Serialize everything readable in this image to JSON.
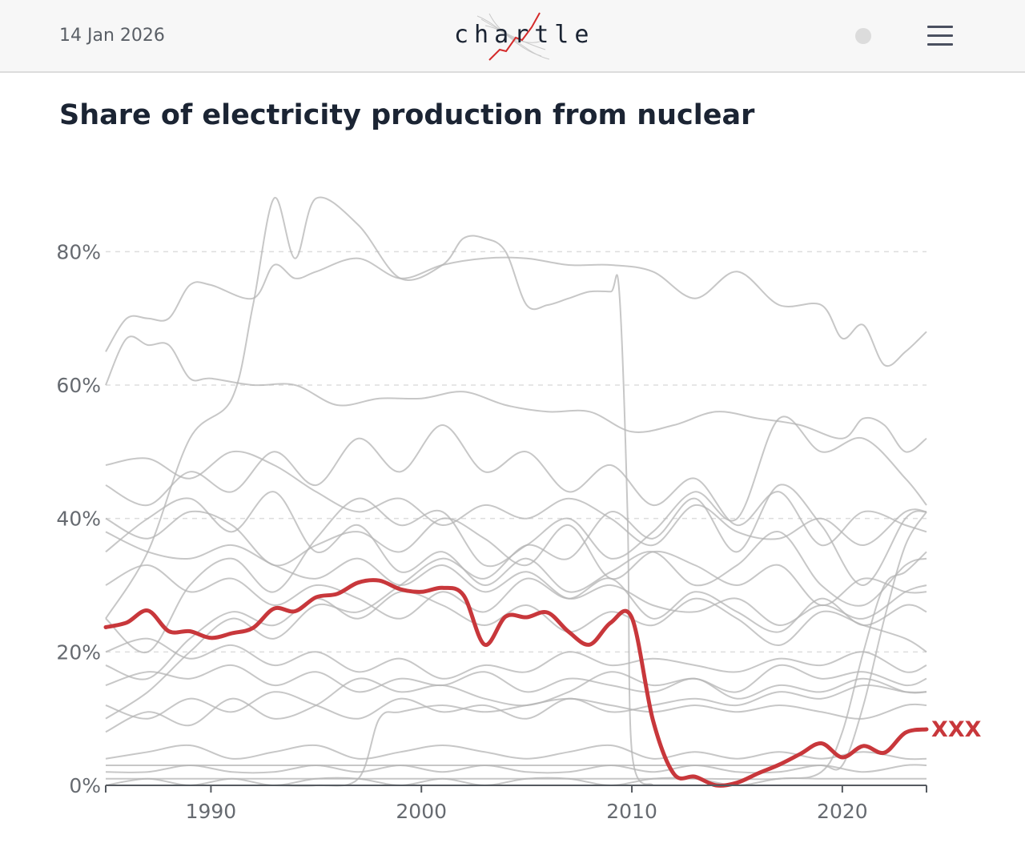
{
  "header": {
    "date": "14 Jan 2026",
    "logo_text": "chartle"
  },
  "title": "Share of electricity production from nuclear",
  "chart_data": {
    "type": "line",
    "title": "Share of electricity production from nuclear",
    "xlabel": "",
    "ylabel": "",
    "xlim": [
      1985,
      2024
    ],
    "ylim": [
      0,
      90
    ],
    "x_ticks": [
      {
        "value": 1990,
        "label": "1990"
      },
      {
        "value": 2000,
        "label": "2000"
      },
      {
        "value": 2010,
        "label": "2010"
      },
      {
        "value": 2020,
        "label": "2020"
      }
    ],
    "y_ticks": [
      {
        "value": 0,
        "label": "0%"
      },
      {
        "value": 20,
        "label": "20%"
      },
      {
        "value": 40,
        "label": "40%"
      },
      {
        "value": 60,
        "label": "60%"
      },
      {
        "value": 80,
        "label": "80%"
      }
    ],
    "highlight": {
      "name": "XXX",
      "color": "#c8373b",
      "x": [
        1985,
        1986,
        1987,
        1988,
        1989,
        1990,
        1991,
        1992,
        1993,
        1994,
        1995,
        1996,
        1997,
        1998,
        1999,
        2000,
        2001,
        2002,
        2003,
        2004,
        2005,
        2006,
        2007,
        2008,
        2009,
        2010,
        2011,
        2012,
        2013,
        2014,
        2015,
        2016,
        2017,
        2018,
        2019,
        2020,
        2021,
        2022,
        2023,
        2024
      ],
      "values": [
        23.7,
        24.4,
        26.2,
        23.1,
        23.1,
        22.1,
        22.8,
        23.6,
        26.5,
        26.1,
        28.2,
        28.7,
        30.4,
        30.7,
        29.4,
        29.0,
        29.6,
        28.5,
        21.1,
        25.3,
        25.2,
        25.9,
        23.0,
        21.1,
        24.4,
        25.1,
        9.8,
        1.7,
        1.3,
        0.0,
        0.4,
        1.8,
        3.1,
        4.7,
        6.3,
        4.2,
        5.9,
        4.9,
        7.9,
        8.4
      ]
    },
    "background_series": [
      {
        "name": "series-01",
        "x": [
          1985,
          1986,
          1987,
          1988,
          1989,
          1990,
          1992,
          1993,
          1994,
          1995,
          1997,
          1999,
          2001,
          2003,
          2005,
          2007,
          2009,
          2011,
          2013,
          2015,
          2017,
          2019,
          2020,
          2021,
          2022,
          2023,
          2024
        ],
        "values": [
          65,
          70,
          70,
          70,
          75,
          75,
          73,
          78,
          76,
          77,
          79,
          76,
          78,
          79,
          79,
          78,
          78,
          77,
          73,
          77,
          72,
          72,
          67,
          69,
          63,
          65,
          68
        ]
      },
      {
        "name": "series-02",
        "x": [
          1985,
          1986,
          1987,
          1988,
          1989,
          1990,
          1992,
          1994,
          1996,
          1998,
          2000,
          2002,
          2004,
          2006,
          2008,
          2010,
          2012,
          2014,
          2016,
          2018,
          2020,
          2021,
          2022,
          2023,
          2024
        ],
        "values": [
          60,
          67,
          66,
          66,
          61,
          61,
          60,
          60,
          57,
          58,
          58,
          59,
          57,
          56,
          56,
          53,
          54,
          56,
          55,
          54,
          52,
          55,
          54,
          50,
          52
        ]
      },
      {
        "name": "series-03",
        "x": [
          1985,
          1987,
          1989,
          1991,
          1992,
          1993,
          1994,
          1995,
          1997,
          1999,
          2001,
          2002,
          2003,
          2004,
          2005,
          2006,
          2007,
          2008,
          2009,
          2009.4,
          2009.8,
          2010,
          2011
        ],
        "values": [
          25,
          35,
          52,
          58,
          72,
          88,
          79,
          88,
          84,
          76,
          78,
          82,
          82,
          80,
          72,
          72,
          73,
          74,
          74,
          74,
          40,
          5,
          0
        ]
      },
      {
        "name": "series-04",
        "x": [
          1985,
          1987,
          1989,
          1991,
          1993,
          1995,
          1997,
          1999,
          2001,
          2003,
          2005,
          2007,
          2009,
          2011,
          2013,
          2015,
          2017,
          2019,
          2021,
          2023,
          2024
        ],
        "values": [
          48,
          49,
          46,
          50,
          48,
          44,
          41,
          43,
          39,
          42,
          40,
          43,
          40,
          36,
          42,
          38,
          37,
          40,
          36,
          41,
          41
        ]
      },
      {
        "name": "series-05",
        "x": [
          1985,
          1987,
          1989,
          1991,
          1993,
          1995,
          1997,
          1999,
          2001,
          2003,
          2005,
          2007,
          2009,
          2011,
          2013,
          2015,
          2017,
          2019,
          2021,
          2023,
          2024
        ],
        "values": [
          45,
          42,
          47,
          44,
          50,
          45,
          52,
          47,
          54,
          47,
          50,
          44,
          48,
          42,
          46,
          39,
          44,
          36,
          41,
          39,
          38
        ]
      },
      {
        "name": "series-06",
        "x": [
          1985,
          1987,
          1989,
          1991,
          1993,
          1995,
          1997,
          1999,
          2001,
          2003,
          2005,
          2007,
          2009,
          2011,
          2013,
          2015,
          2017,
          2019,
          2021,
          2023,
          2024
        ],
        "values": [
          40,
          37,
          41,
          39,
          33,
          36,
          38,
          35,
          40,
          37,
          33,
          39,
          31,
          35,
          33,
          30,
          33,
          27,
          31,
          29,
          29
        ]
      },
      {
        "name": "series-07",
        "x": [
          1985,
          1987,
          1989,
          1991,
          1993,
          1995,
          1997,
          1999,
          2001,
          2003,
          2005,
          2007,
          2009,
          2011,
          2013,
          2015,
          2017,
          2019,
          2021,
          2023,
          2024
        ],
        "values": [
          38,
          35,
          34,
          36,
          33,
          31,
          34,
          30,
          33,
          29,
          32,
          28,
          30,
          27,
          26,
          28,
          24,
          27,
          25,
          29,
          30
        ]
      },
      {
        "name": "series-08",
        "x": [
          1985,
          1987,
          1989,
          1991,
          1993,
          1995,
          1997,
          1999,
          2001,
          2003,
          2005,
          2007,
          2009,
          2011,
          2013,
          2015,
          2017,
          2019,
          2021,
          2023,
          2024
        ],
        "values": [
          30,
          33,
          29,
          31,
          27,
          30,
          28,
          25,
          29,
          26,
          31,
          28,
          31,
          25,
          29,
          26,
          23,
          28,
          24,
          27,
          26
        ]
      },
      {
        "name": "series-09",
        "x": [
          1985,
          1987,
          1989,
          1991,
          1993,
          1995,
          1997,
          1999,
          2001,
          2003,
          2005,
          2007,
          2009,
          2011,
          2013,
          2015,
          2017,
          2019,
          2021,
          2023,
          2024
        ],
        "values": [
          20,
          22,
          19,
          21,
          18,
          20,
          17,
          19,
          16,
          18,
          17,
          20,
          18,
          19,
          18,
          17,
          19,
          18,
          20,
          17,
          18
        ]
      },
      {
        "name": "series-10",
        "x": [
          1985,
          1987,
          1989,
          1991,
          1993,
          1995,
          1997,
          1999,
          2001,
          2003,
          2005,
          2007,
          2009,
          2011,
          2013,
          2015,
          2017,
          2019,
          2021,
          2023,
          2024
        ],
        "values": [
          15,
          17,
          16,
          18,
          15,
          17,
          14,
          16,
          15,
          17,
          14,
          16,
          15,
          14,
          16,
          13,
          15,
          14,
          16,
          14,
          14
        ]
      },
      {
        "name": "series-11",
        "x": [
          1985,
          1987,
          1989,
          1991,
          1993,
          1995,
          1997,
          1999,
          2001,
          2003,
          2005,
          2007,
          2009,
          2011,
          2013,
          2015,
          2017,
          2019,
          2021,
          2023,
          2024
        ],
        "values": [
          12,
          10,
          13,
          11,
          14,
          12,
          10,
          13,
          11,
          12,
          10,
          13,
          11,
          12,
          13,
          12,
          14,
          13,
          15,
          14,
          14
        ]
      },
      {
        "name": "series-12",
        "x": [
          1985,
          1987,
          1989,
          1991,
          1993,
          1995,
          1997,
          1999,
          2001,
          2003,
          2005,
          2007,
          2009,
          2011,
          2013,
          2015,
          2017,
          2019,
          2021,
          2023,
          2024
        ],
        "values": [
          4,
          5,
          6,
          4,
          5,
          6,
          4,
          5,
          6,
          5,
          4,
          5,
          6,
          4,
          5,
          4,
          5,
          4,
          5,
          4,
          4
        ]
      },
      {
        "name": "series-13",
        "x": [
          1985,
          1987,
          1989,
          1991,
          1993,
          1995,
          1997,
          1999,
          2001,
          2003,
          2005,
          2007,
          2009,
          2011,
          2013,
          2015,
          2017,
          2019,
          2021,
          2023,
          2024
        ],
        "values": [
          2,
          2,
          3,
          2,
          2,
          3,
          2,
          3,
          2,
          3,
          2,
          2,
          3,
          2,
          3,
          2,
          2,
          3,
          2,
          3,
          3
        ]
      },
      {
        "name": "series-14",
        "x": [
          1985,
          1987,
          1989,
          1991,
          1993,
          1995,
          1997,
          1999,
          2001,
          2003,
          2005,
          2007,
          2009,
          2011,
          2013,
          2015,
          2017,
          2019,
          2021,
          2023,
          2024
        ],
        "values": [
          0,
          1,
          0,
          1,
          0,
          1,
          1,
          0,
          1,
          0,
          1,
          1,
          0,
          1,
          1,
          0,
          1,
          1,
          1,
          1,
          1
        ]
      },
      {
        "name": "series-15",
        "x": [
          1985,
          1987,
          1989,
          1991,
          1993,
          1995,
          1997,
          1998,
          1999,
          2001,
          2003,
          2005,
          2007,
          2009,
          2011,
          2013,
          2015,
          2017,
          2019,
          2021,
          2023,
          2024
        ],
        "values": [
          0,
          0,
          0,
          0,
          0,
          0,
          1,
          10,
          11,
          12,
          11,
          12,
          13,
          12,
          11,
          12,
          11,
          12,
          11,
          10,
          12,
          12
        ]
      },
      {
        "name": "series-16",
        "x": [
          1985,
          1989,
          1993,
          1997,
          2001,
          2005,
          2009,
          2013,
          2017,
          2019,
          2020,
          2021,
          2022,
          2023,
          2024
        ],
        "values": [
          3,
          3,
          3,
          3,
          3,
          3,
          3,
          3,
          3,
          3,
          3,
          12,
          25,
          36,
          41
        ]
      },
      {
        "name": "series-17",
        "x": [
          1985,
          1989,
          1993,
          1997,
          2001,
          2005,
          2009,
          2013,
          2017,
          2019,
          2020,
          2021,
          2022,
          2023,
          2024
        ],
        "values": [
          1,
          1,
          1,
          1,
          1,
          1,
          1,
          1,
          1,
          2,
          8,
          20,
          30,
          32,
          35
        ]
      },
      {
        "name": "series-18",
        "x": [
          1985,
          1987,
          1989,
          1991,
          1993,
          1995,
          1997,
          1999,
          2001,
          2003,
          2005,
          2007,
          2009,
          2011,
          2013,
          2015,
          2017,
          2019,
          2021,
          2023,
          2024
        ],
        "values": [
          25,
          20,
          30,
          34,
          29,
          37,
          43,
          39,
          41,
          33,
          36,
          40,
          34,
          38,
          44,
          40,
          55,
          50,
          52,
          46,
          42
        ]
      },
      {
        "name": "series-19",
        "x": [
          1985,
          1987,
          1989,
          1991,
          1993,
          1995,
          1997,
          1999,
          2001,
          2003,
          2005,
          2007,
          2009,
          2011,
          2013,
          2015,
          2017,
          2019,
          2021,
          2023,
          2024
        ],
        "values": [
          35,
          40,
          43,
          38,
          44,
          35,
          39,
          32,
          35,
          30,
          34,
          29,
          32,
          35,
          30,
          33,
          38,
          30,
          27,
          33,
          34
        ]
      },
      {
        "name": "series-20",
        "x": [
          1985,
          1987,
          1989,
          1991,
          1993,
          1995,
          1997,
          1999,
          2001,
          2003,
          2005,
          2007,
          2009,
          2011,
          2013,
          2015,
          2017,
          2019,
          2021,
          2023,
          2024
        ],
        "values": [
          10,
          14,
          20,
          25,
          22,
          27,
          26,
          30,
          34,
          31,
          36,
          34,
          41,
          37,
          43,
          35,
          45,
          39,
          30,
          40,
          41
        ]
      },
      {
        "name": "series-21",
        "x": [
          1985,
          1987,
          1989,
          1991,
          1993,
          1995,
          1997,
          1999,
          2001,
          2003,
          2005,
          2007,
          2009,
          2011,
          2013,
          2015,
          2017,
          2019,
          2021,
          2023,
          2024
        ],
        "values": [
          18,
          16,
          22,
          26,
          24,
          28,
          25,
          29,
          27,
          24,
          27,
          23,
          26,
          24,
          28,
          25,
          21,
          26,
          24,
          22,
          20
        ]
      },
      {
        "name": "series-22",
        "x": [
          1985,
          1987,
          1989,
          1991,
          1993,
          1995,
          1997,
          1999,
          2001,
          2003,
          2005,
          2007,
          2009,
          2011,
          2013,
          2015,
          2017,
          2019,
          2021,
          2023,
          2024
        ],
        "values": [
          8,
          11,
          9,
          13,
          10,
          12,
          16,
          14,
          15,
          13,
          12,
          14,
          17,
          15,
          16,
          14,
          18,
          16,
          17,
          15,
          16
        ]
      }
    ]
  }
}
